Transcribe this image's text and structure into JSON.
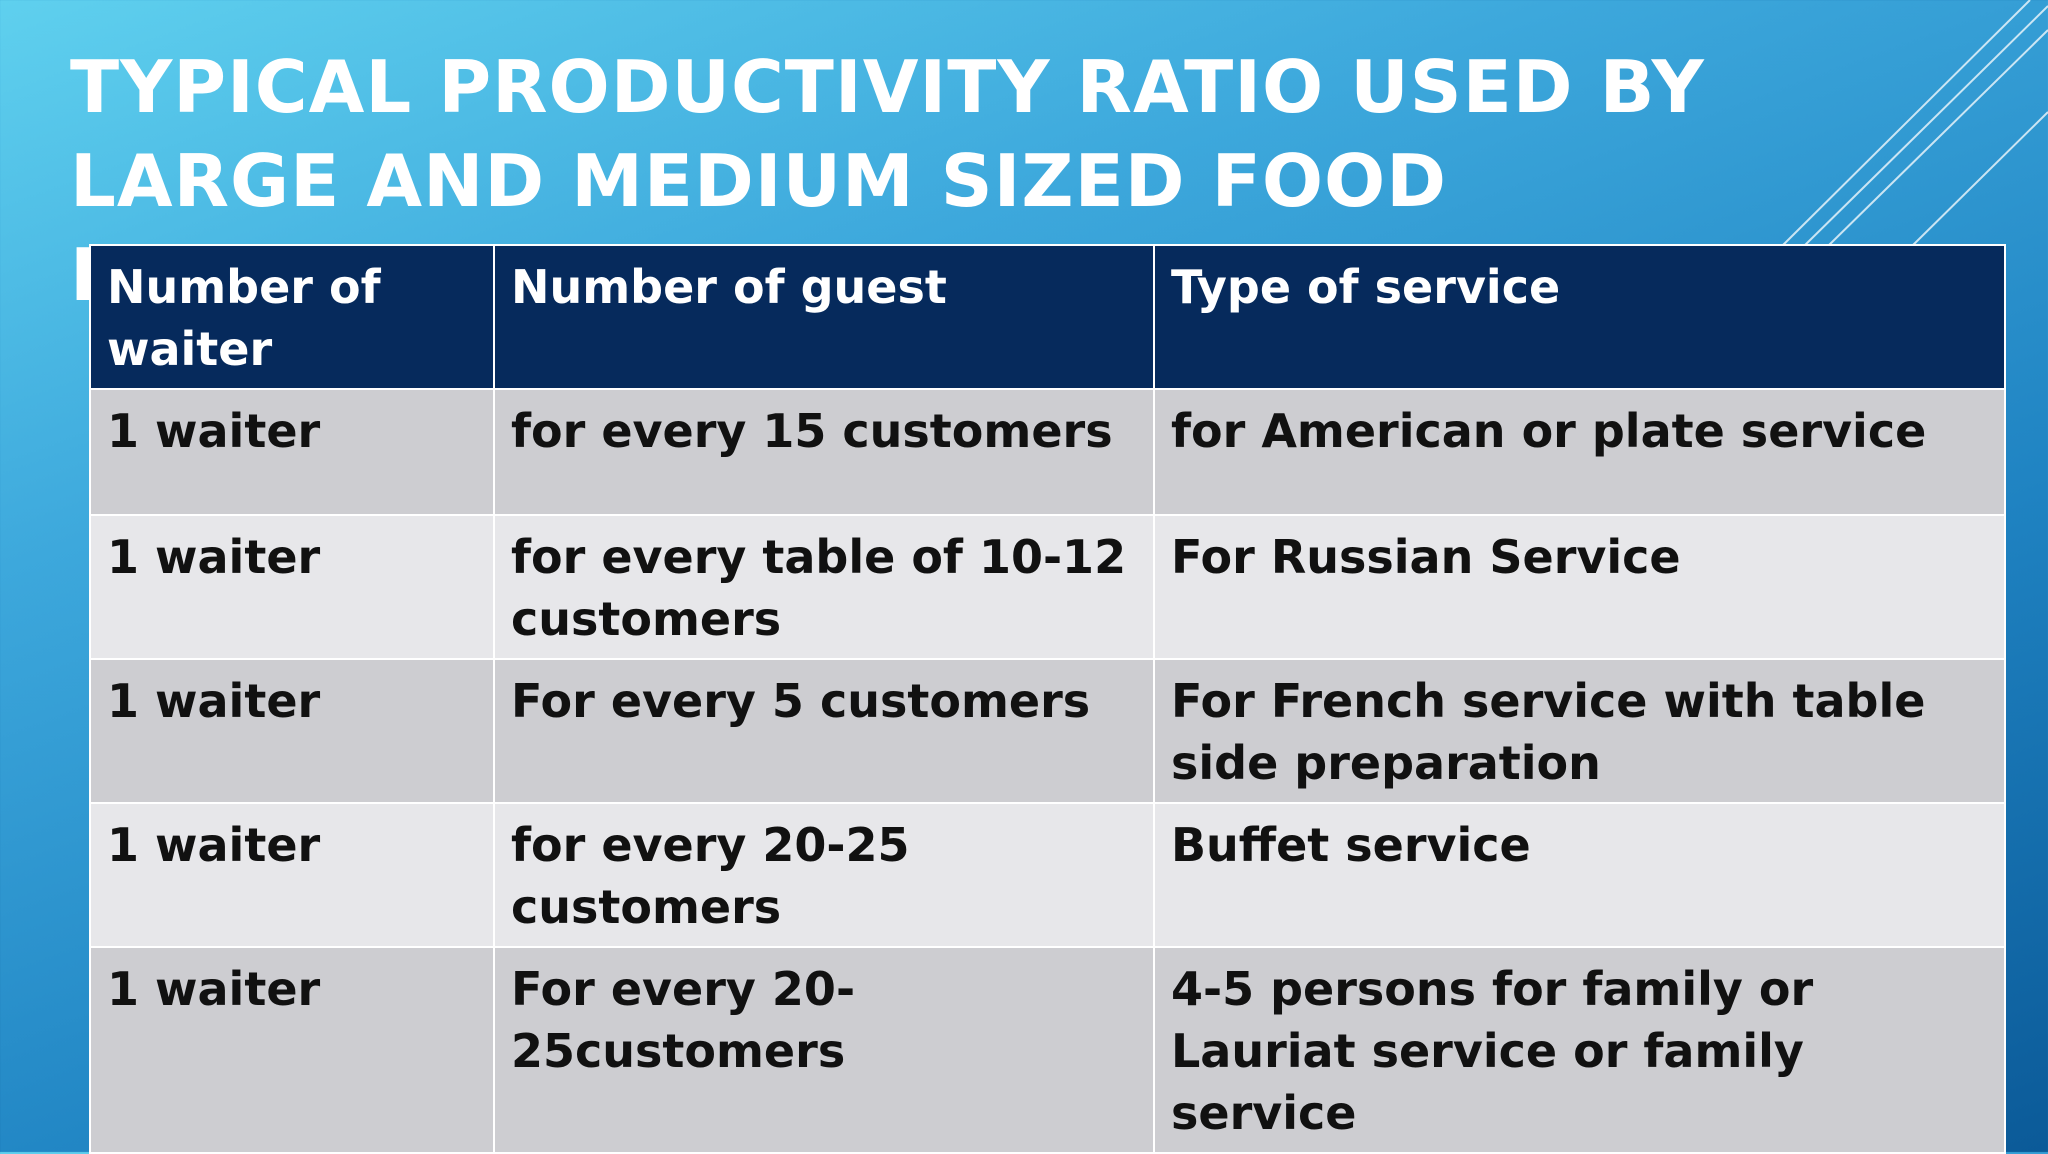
{
  "slide": {
    "title": "TYPICAL PRODUCTIVITY RATIO USED BY LARGE AND MEDIUM SIZED FOOD ESTABLISHMENTS:"
  },
  "table": {
    "headers": [
      "Number of waiter",
      "Number of guest",
      "Type of  service"
    ],
    "rows": [
      [
        "1 waiter",
        "for every 15 customers",
        "for American or plate service"
      ],
      [
        "1 waiter",
        "for every table of 10-12 customers",
        "For Russian Service"
      ],
      [
        "1 waiter",
        "For every 5 customers",
        "For French service with table side preparation"
      ],
      [
        "1 waiter",
        "for every 20-25 customers",
        "Buffet service"
      ],
      [
        "1 waiter",
        "For every 20-25customers",
        "4-5 persons for family  or Lauriat service or family service"
      ]
    ]
  },
  "colors": {
    "header_bg": "#062a5c",
    "row_odd_bg": "#cdcdd1",
    "row_even_bg": "#e7e7ea",
    "title_text": "#ffffff"
  }
}
